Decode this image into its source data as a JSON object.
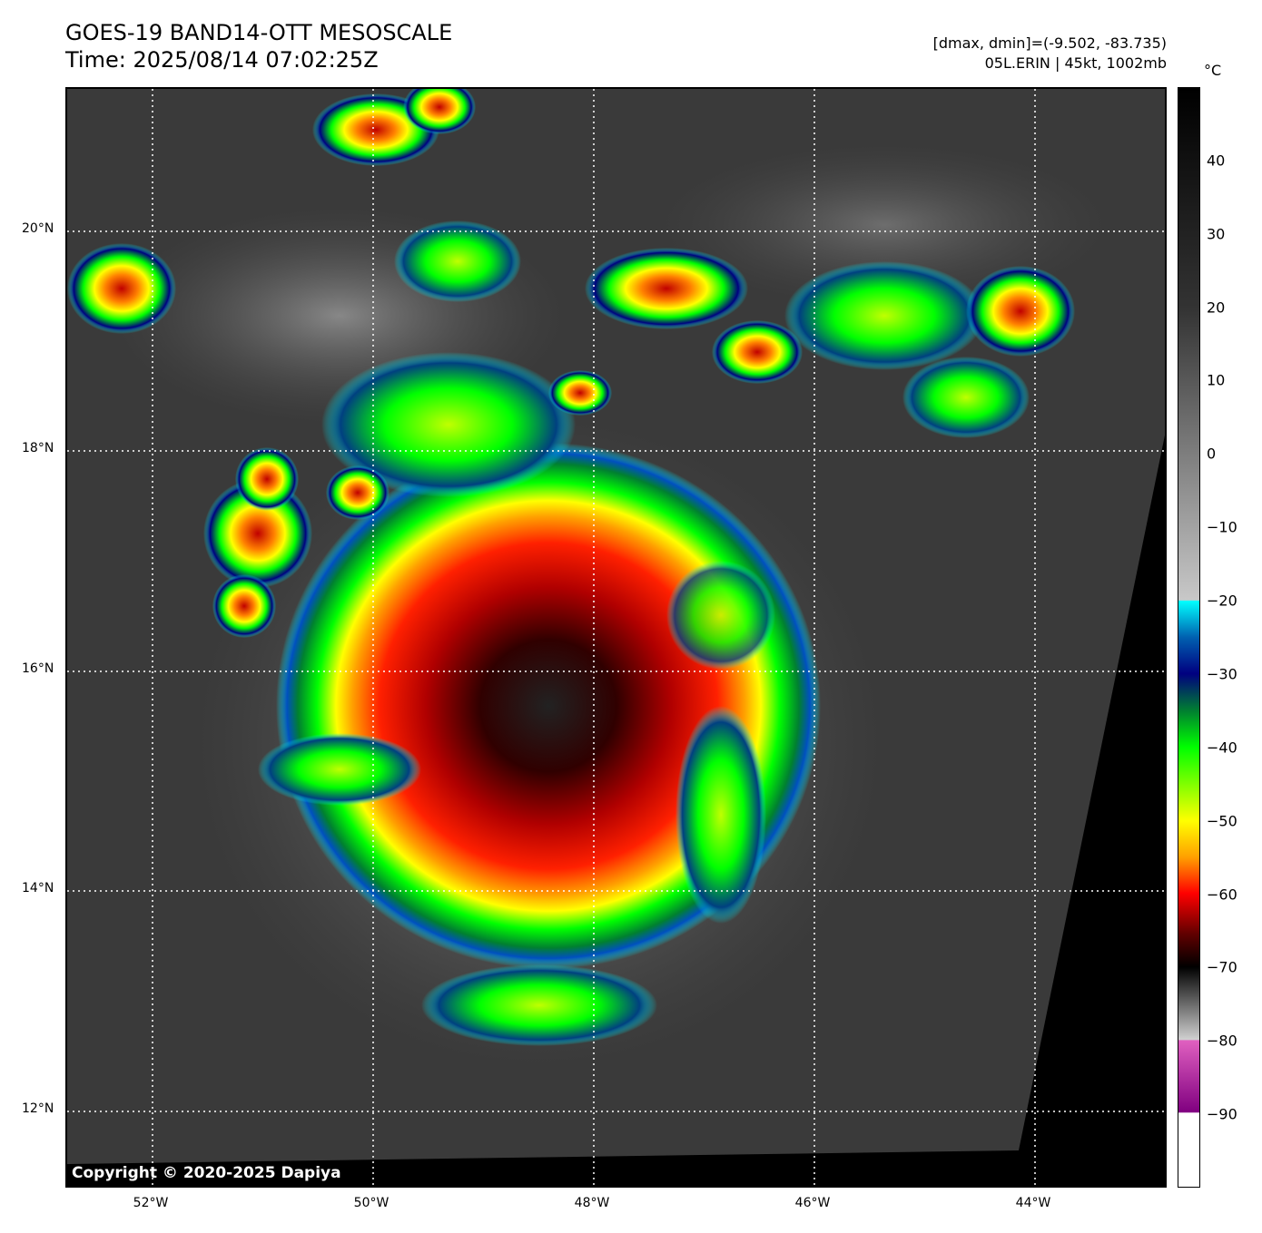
{
  "header": {
    "title": "GOES-19 BAND14-OTT MESOSCALE",
    "time": "Time: 2025/08/14 07:02:25Z",
    "dmax_dmin": "[dmax, dmin]=(-9.502, -83.735)",
    "storm": "05L.ERIN | 45kt, 1002mb"
  },
  "map": {
    "lat_labels": [
      "20°N",
      "18°N",
      "16°N",
      "14°N",
      "12°N"
    ],
    "lon_labels": [
      "52°W",
      "50°W",
      "48°W",
      "46°W",
      "44°W"
    ],
    "copyright": "Copyright © 2020-2025 Dapiya"
  },
  "colorbar": {
    "unit": "°C",
    "ticks": [
      "40",
      "30",
      "20",
      "10",
      "0",
      "−10",
      "−20",
      "−30",
      "−40",
      "−50",
      "−60",
      "−70",
      "−80",
      "−90"
    ],
    "range": [
      -100,
      50
    ],
    "colors": {
      "cyan": "#00ffff",
      "navy": "#000080",
      "green": "#00ff00",
      "yellow": "#ffff00",
      "red": "#ff0000",
      "pink": "#e060c0",
      "purple": "#800080"
    }
  }
}
